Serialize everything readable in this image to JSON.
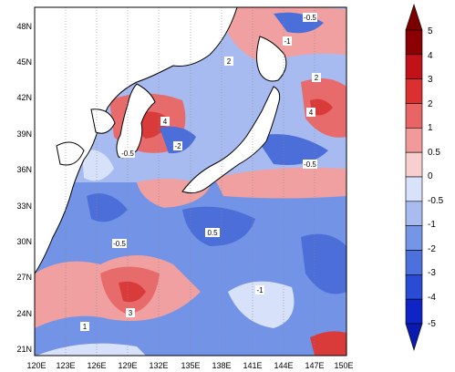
{
  "map": {
    "lat_labels": [
      "48N",
      "45N",
      "42N",
      "39N",
      "36N",
      "33N",
      "30N",
      "27N",
      "24N",
      "21N"
    ],
    "lon_labels": [
      "120E",
      "123E",
      "126E",
      "129E",
      "132E",
      "135E",
      "138E",
      "141E",
      "144E",
      "147E",
      "150E"
    ],
    "contour_labels": [
      "-0.5",
      "-1",
      "-2",
      "0.5",
      "1",
      "2",
      "3",
      "4"
    ],
    "projection": "lat-lon, 120E–150E, 20N–50N",
    "ocean_colors": [
      "#1e37d2",
      "#4b6ed9",
      "#7393e6",
      "#a7bbf0",
      "#d8e1fa",
      "#f7d3d3",
      "#f0a0a0",
      "#e86b6b",
      "#d93b3b"
    ],
    "land_color": "#ffffff"
  },
  "colorbar": {
    "labels": [
      "5",
      "4",
      "3",
      "2",
      "1",
      "0.5",
      "0",
      "-0.5",
      "-1",
      "-2",
      "-3",
      "-4",
      "-5"
    ],
    "colors": [
      "#8b0000",
      "#c1121a",
      "#dc2f2f",
      "#e96565",
      "#f29a9a",
      "#f8cfcf",
      "#d9e2fb",
      "#a8bcf1",
      "#7596e7",
      "#4d71dc",
      "#2a4bd3",
      "#0f24c4"
    ],
    "arrow_top_color": "#7a0000",
    "arrow_bottom_color": "#0a1ab0"
  }
}
